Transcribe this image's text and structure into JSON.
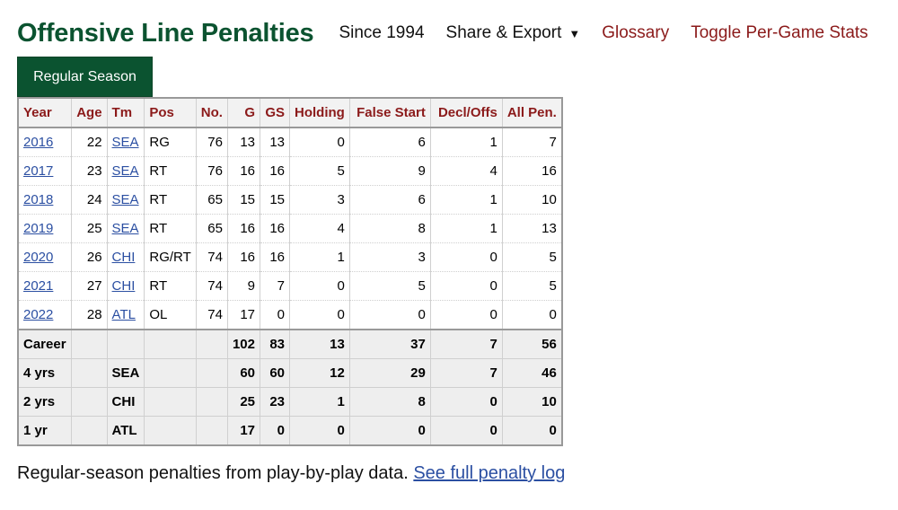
{
  "header": {
    "title": "Offensive Line Penalties",
    "since": "Since 1994",
    "share_export": "Share & Export",
    "glossary": "Glossary",
    "toggle": "Toggle Per-Game Stats"
  },
  "tab": {
    "label": "Regular Season"
  },
  "table": {
    "columns": [
      "Year",
      "Age",
      "Tm",
      "Pos",
      "No.",
      "G",
      "GS",
      "Holding",
      "False Start",
      "Decl/Offs",
      "All Pen."
    ],
    "rows": [
      [
        "2016",
        "22",
        "SEA",
        "RG",
        "76",
        "13",
        "13",
        "0",
        "6",
        "1",
        "7"
      ],
      [
        "2017",
        "23",
        "SEA",
        "RT",
        "76",
        "16",
        "16",
        "5",
        "9",
        "4",
        "16"
      ],
      [
        "2018",
        "24",
        "SEA",
        "RT",
        "65",
        "15",
        "15",
        "3",
        "6",
        "1",
        "10"
      ],
      [
        "2019",
        "25",
        "SEA",
        "RT",
        "65",
        "16",
        "16",
        "4",
        "8",
        "1",
        "13"
      ],
      [
        "2020",
        "26",
        "CHI",
        "RG/RT",
        "74",
        "16",
        "16",
        "1",
        "3",
        "0",
        "5"
      ],
      [
        "2021",
        "27",
        "CHI",
        "RT",
        "74",
        "9",
        "7",
        "0",
        "5",
        "0",
        "5"
      ],
      [
        "2022",
        "28",
        "ATL",
        "OL",
        "74",
        "17",
        "0",
        "0",
        "0",
        "0",
        "0"
      ]
    ],
    "footer": [
      [
        "Career",
        "",
        "",
        "",
        "",
        "102",
        "83",
        "13",
        "37",
        "7",
        "56"
      ],
      [
        "4 yrs",
        "",
        "SEA",
        "",
        "",
        "60",
        "60",
        "12",
        "29",
        "7",
        "46"
      ],
      [
        "2 yrs",
        "",
        "CHI",
        "",
        "",
        "25",
        "23",
        "1",
        "8",
        "0",
        "10"
      ],
      [
        "1 yr",
        "",
        "ATL",
        "",
        "",
        "17",
        "0",
        "0",
        "0",
        "0",
        "0"
      ]
    ]
  },
  "note": {
    "text": "Regular-season penalties from play-by-play data.",
    "link": "See full penalty log"
  },
  "colors": {
    "brand_green": "#0b5330",
    "header_red": "#8b1a1a",
    "link_blue": "#2b4fa2"
  }
}
